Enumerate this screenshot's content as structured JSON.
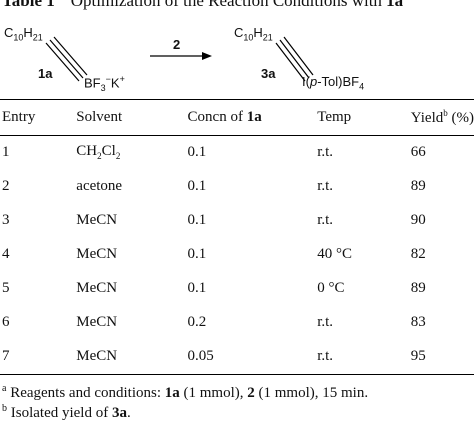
{
  "caption": {
    "label": "Table 1",
    "text": "Optimization of the Reaction Conditions with ",
    "compound": "1a",
    "mark": "a"
  },
  "scheme": {
    "reactant": {
      "chain": "C10H21",
      "chain_base": "C",
      "chain_sub": "10",
      "chain_h": "H",
      "chain_h_sub": "21",
      "id": "1a",
      "salt_prefix": "BF",
      "salt_sub": "3",
      "salt_charge": "−",
      "salt_mid": "K",
      "salt_charge2": "+"
    },
    "reagent": "2",
    "product": {
      "chain_base": "C",
      "chain_sub": "10",
      "chain_h": "H",
      "chain_h_sub": "21",
      "id": "3a",
      "group_prefix": "I(",
      "group_italic": "p",
      "group_mid": "-Tol)BF",
      "group_sub": "4"
    }
  },
  "table": {
    "headers": {
      "entry": "Entry",
      "solvent": "Solvent",
      "concn": "Concn of ",
      "concn_compound": "1a",
      "temp": "Temp",
      "yield": "Yield",
      "yield_mark": "b",
      "yield_unit": " (%)"
    },
    "rows": [
      {
        "entry": "1",
        "solvent_base": "CH",
        "solvent_sub1": "2",
        "solvent_mid": "Cl",
        "solvent_sub2": "2",
        "concn": "0.1",
        "temp": "r.t.",
        "yield": "66"
      },
      {
        "entry": "2",
        "solvent": "acetone",
        "concn": "0.1",
        "temp": "r.t.",
        "yield": "89"
      },
      {
        "entry": "3",
        "solvent": "MeCN",
        "concn": "0.1",
        "temp": "r.t.",
        "yield": "90"
      },
      {
        "entry": "4",
        "solvent": "MeCN",
        "concn": "0.1",
        "temp": "40 °C",
        "yield": "82"
      },
      {
        "entry": "5",
        "solvent": "MeCN",
        "concn": "0.1",
        "temp": "0 °C",
        "yield": "89"
      },
      {
        "entry": "6",
        "solvent": "MeCN",
        "concn": "0.2",
        "temp": "r.t.",
        "yield": "83"
      },
      {
        "entry": "7",
        "solvent": "MeCN",
        "concn": "0.05",
        "temp": "r.t.",
        "yield": "95"
      }
    ]
  },
  "footnotes": {
    "a": {
      "mark": "a",
      "text1": " Reagents and conditions: ",
      "c1": "1a",
      "text2": " (1 mmol), ",
      "c2": "2",
      "text3": " (1 mmol), 15 min."
    },
    "b": {
      "mark": "b",
      "text1": " Isolated yield of ",
      "c1": "3a",
      "text2": "."
    }
  }
}
